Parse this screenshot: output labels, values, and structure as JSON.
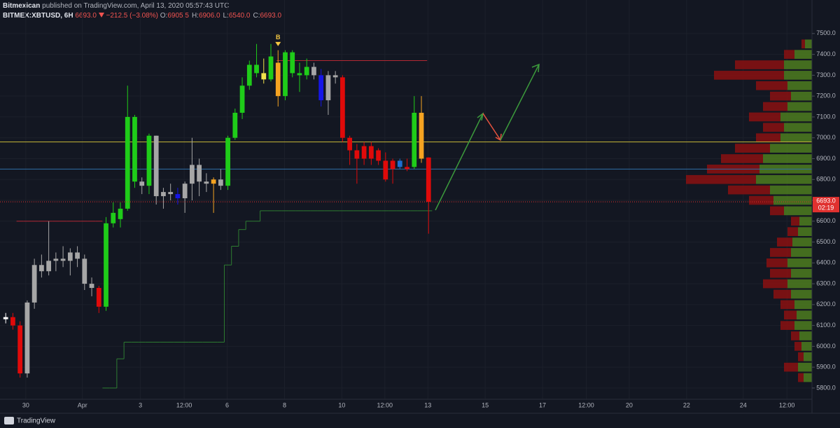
{
  "header": {
    "author": "Bitmexican",
    "published": "published on TradingView.com, April 13, 2020 05:57:43 UTC",
    "symbol": "BITMEX:XBTUSD, 6H",
    "last": "6693.0",
    "change": "−212.5 (−3.08%)",
    "ohlc": [
      {
        "label": "O:",
        "value": "6905.5"
      },
      {
        "label": "H:",
        "value": "6906.0"
      },
      {
        "label": "L:",
        "value": "6540.0"
      },
      {
        "label": "C:",
        "value": "6693.0"
      }
    ]
  },
  "footer": {
    "brand": "TradingView"
  },
  "chart_data": {
    "type": "candlestick",
    "xlim": [
      -0.8,
      112.5
    ],
    "ylim": [
      5746,
      7560
    ],
    "xticks": [
      {
        "value": 2.8,
        "label": "30"
      },
      {
        "value": 10.7,
        "label": "Apr"
      },
      {
        "value": 18.8,
        "label": "3"
      },
      {
        "value": 24.9,
        "label": "12:00"
      },
      {
        "value": 30.9,
        "label": "6"
      },
      {
        "value": 38.9,
        "label": "8"
      },
      {
        "value": 46.9,
        "label": "10"
      },
      {
        "value": 52.9,
        "label": "12:00"
      },
      {
        "value": 58.9,
        "label": "13"
      },
      {
        "value": 66.9,
        "label": "15"
      },
      {
        "value": 74.9,
        "label": "17"
      },
      {
        "value": 81,
        "label": "12:00"
      },
      {
        "value": 87,
        "label": "20"
      },
      {
        "value": 95,
        "label": "22"
      },
      {
        "value": 102.9,
        "label": "24"
      },
      {
        "value": 109,
        "label": "12:00"
      }
    ],
    "yticks": [
      {
        "value": 5800,
        "label": "5800.0"
      },
      {
        "value": 5900,
        "label": "5900.0"
      },
      {
        "value": 6000,
        "label": "6000.0"
      },
      {
        "value": 6100,
        "label": "6100.0"
      },
      {
        "value": 6200,
        "label": "6200.0"
      },
      {
        "value": 6300,
        "label": "6300.0"
      },
      {
        "value": 6400,
        "label": "6400.0"
      },
      {
        "value": 6500,
        "label": "6500.0"
      },
      {
        "value": 6600,
        "label": "6600.0"
      },
      {
        "value": 6700,
        "label": "6700.0"
      },
      {
        "value": 6800,
        "label": "6800.0"
      },
      {
        "value": 6900,
        "label": "6900.0"
      },
      {
        "value": 7000,
        "label": "7000.0"
      },
      {
        "value": 7100,
        "label": "7100.0"
      },
      {
        "value": 7200,
        "label": "7200.0"
      },
      {
        "value": 7300,
        "label": "7300.0"
      },
      {
        "value": 7400,
        "label": "7400.0"
      },
      {
        "value": 7500,
        "label": "7500.0"
      }
    ],
    "grid": true,
    "candles": {
      "open": [
        6130,
        6140,
        6100,
        5870,
        6210,
        6390,
        6360,
        6410,
        6420,
        6410,
        6450,
        6420,
        6300,
        6280,
        6190,
        6590,
        6610,
        6660,
        7100,
        6790,
        6770,
        7010,
        6720,
        6740,
        6730,
        6710,
        6780,
        6870,
        6790,
        6780,
        6800,
        6770,
        7000,
        7120,
        7250,
        7350,
        7310,
        7280,
        7360,
        7200,
        7410,
        7310,
        7300,
        7340,
        7300,
        7180,
        7300,
        7290,
        7000,
        6940,
        6900,
        6960,
        6940,
        6890,
        6890,
        6890,
        6860,
        6860,
        7120,
        6905.5
      ],
      "high": [
        6160,
        6160,
        6120,
        6220,
        6420,
        6440,
        6600,
        6450,
        6480,
        6470,
        6480,
        6440,
        6330,
        6290,
        6620,
        6690,
        6690,
        7250,
        7110,
        6810,
        7020,
        7010,
        6760,
        6780,
        6760,
        6790,
        7000,
        6900,
        6830,
        6810,
        6850,
        7010,
        7140,
        7290,
        7370,
        7450,
        7380,
        7450,
        7420,
        7420,
        7420,
        7360,
        7380,
        7360,
        7330,
        7320,
        7320,
        7300,
        7010,
        6970,
        6980,
        6980,
        6950,
        6930,
        6900,
        6900,
        6900,
        7200,
        7200,
        6906
      ],
      "low": [
        6110,
        6080,
        5850,
        5850,
        6180,
        6330,
        6340,
        6360,
        6380,
        6340,
        6380,
        6270,
        6240,
        6160,
        6170,
        6570,
        6570,
        6650,
        6760,
        6730,
        6730,
        6680,
        6660,
        6700,
        6680,
        6640,
        6700,
        6720,
        6740,
        6640,
        6750,
        6750,
        6990,
        7090,
        7230,
        7290,
        7260,
        7270,
        7150,
        7180,
        7290,
        7220,
        7280,
        7280,
        7150,
        7110,
        7260,
        6980,
        6870,
        6780,
        6870,
        6870,
        6870,
        6790,
        6780,
        6850,
        6840,
        6850,
        6880,
        6540
      ],
      "close": [
        6140,
        6100,
        5870,
        6210,
        6390,
        6360,
        6410,
        6420,
        6410,
        6450,
        6420,
        6300,
        6280,
        6190,
        6590,
        6640,
        6660,
        7100,
        6790,
        6770,
        7010,
        6720,
        6740,
        6730,
        6710,
        6780,
        6870,
        6790,
        6780,
        6800,
        6770,
        7000,
        7120,
        7250,
        7350,
        7310,
        7280,
        7390,
        7200,
        7410,
        7310,
        7300,
        7340,
        7300,
        7180,
        7300,
        7290,
        7000,
        6940,
        6900,
        6960,
        6900,
        6890,
        6800,
        6850,
        6860,
        6850,
        7120,
        6900,
        6693
      ],
      "colors": [
        "#ffffff",
        "#e00a0a",
        "#e00a0a",
        "#a6a6a6",
        "#a6a6a6",
        "#a6a6a6",
        "#a6a6a6",
        "#a6a6a6",
        "#a6a6a6",
        "#a6a6a6",
        "#a6a6a6",
        "#a6a6a6",
        "#a6a6a6",
        "#e00a0a",
        "#1fcc19",
        "#1fcc19",
        "#1fcc19",
        "#1fcc19",
        "#1fcc19",
        "#a6a6a6",
        "#1fcc19",
        "#a6a6a6",
        "#a6a6a6",
        "#a6a6a6",
        "#1616e8",
        "#a6a6a6",
        "#a6a6a6",
        "#a6a6a6",
        "#a6a6a6",
        "#f5a321",
        "#a6a6a6",
        "#1fcc19",
        "#1fcc19",
        "#1fcc19",
        "#1fcc19",
        "#1fcc19",
        "#f2e24b",
        "#1fcc19",
        "#f5a321",
        "#1fcc19",
        "#1fcc19",
        "#1fcc19",
        "#1fcc19",
        "#a6a6a6",
        "#1616e8",
        "#a6a6a6",
        "#a6a6a6",
        "#e00a0a",
        "#e00a0a",
        "#e00a0a",
        "#e00a0a",
        "#e00a0a",
        "#e00a0a",
        "#e00a0a",
        "#e00a0a",
        "#1e6fd0",
        "#e00a0a",
        "#1fcc19",
        "#f5a321",
        "#e00a0a"
      ]
    },
    "stops": [
      {
        "color": "#b22833",
        "values": [
          null,
          null,
          6600,
          6600,
          6600,
          6600,
          6600,
          6600,
          6600,
          6600,
          6600,
          6600,
          6600,
          6600,
          null,
          null,
          null,
          null,
          null,
          null,
          null,
          null,
          null,
          null,
          null,
          null,
          null,
          null,
          null,
          null,
          null,
          null,
          null,
          null,
          null,
          null,
          null,
          null,
          null,
          null,
          null,
          null,
          null,
          null,
          null,
          null,
          null,
          null,
          null,
          null,
          null,
          null,
          null,
          null,
          null,
          null,
          null,
          null,
          null,
          null
        ]
      },
      {
        "color": "#2e7d32",
        "values": [
          null,
          null,
          null,
          null,
          null,
          null,
          null,
          null,
          null,
          null,
          null,
          null,
          null,
          null,
          5800,
          5800,
          5940,
          6020,
          6020,
          6020,
          6020,
          6020,
          6020,
          6020,
          6020,
          6020,
          6020,
          6020,
          6020,
          6020,
          6020,
          6390,
          6480,
          6560,
          6600,
          6600,
          6650,
          6650,
          6650,
          6650,
          6650,
          6650,
          6650,
          6650,
          6650,
          6650,
          6650,
          6650,
          6650,
          6650,
          6650,
          6650,
          6650,
          6650,
          6650,
          6650,
          6650,
          6650,
          6650,
          6650
        ]
      }
    ],
    "levels": [
      {
        "value": 7370,
        "color": "#b22833",
        "from": 37.8,
        "to": 58.8
      },
      {
        "value": 6980,
        "color": "#c9b938"
      },
      {
        "value": 6850,
        "color": "#2f6fa8"
      }
    ],
    "last_price": {
      "value": 6693,
      "label": "6693.0",
      "color": "#e0312f",
      "countdown": "02:19"
    },
    "annotations": [
      {
        "text": "B",
        "x": 38,
        "y": 7480,
        "color": "#f5c842"
      }
    ],
    "volume_profile": {
      "up_color": "#4e7d1e",
      "down_color": "#8b1010",
      "prices": [
        5850,
        5900,
        5950,
        6000,
        6050,
        6100,
        6150,
        6200,
        6250,
        6300,
        6350,
        6400,
        6450,
        6500,
        6550,
        6600,
        6650,
        6700,
        6750,
        6800,
        6850,
        6900,
        6950,
        7000,
        7050,
        7100,
        7150,
        7200,
        7250,
        7300,
        7350,
        7400,
        7450
      ],
      "up": [
        12,
        20,
        12,
        15,
        18,
        25,
        22,
        25,
        30,
        35,
        30,
        35,
        30,
        28,
        20,
        18,
        40,
        55,
        60,
        80,
        75,
        70,
        60,
        45,
        40,
        45,
        35,
        30,
        35,
        40,
        40,
        25,
        10
      ],
      "down": [
        8,
        20,
        8,
        10,
        12,
        20,
        18,
        20,
        25,
        35,
        30,
        30,
        30,
        22,
        15,
        12,
        20,
        35,
        60,
        100,
        75,
        60,
        50,
        35,
        30,
        45,
        35,
        30,
        45,
        100,
        70,
        15,
        5
      ]
    }
  }
}
